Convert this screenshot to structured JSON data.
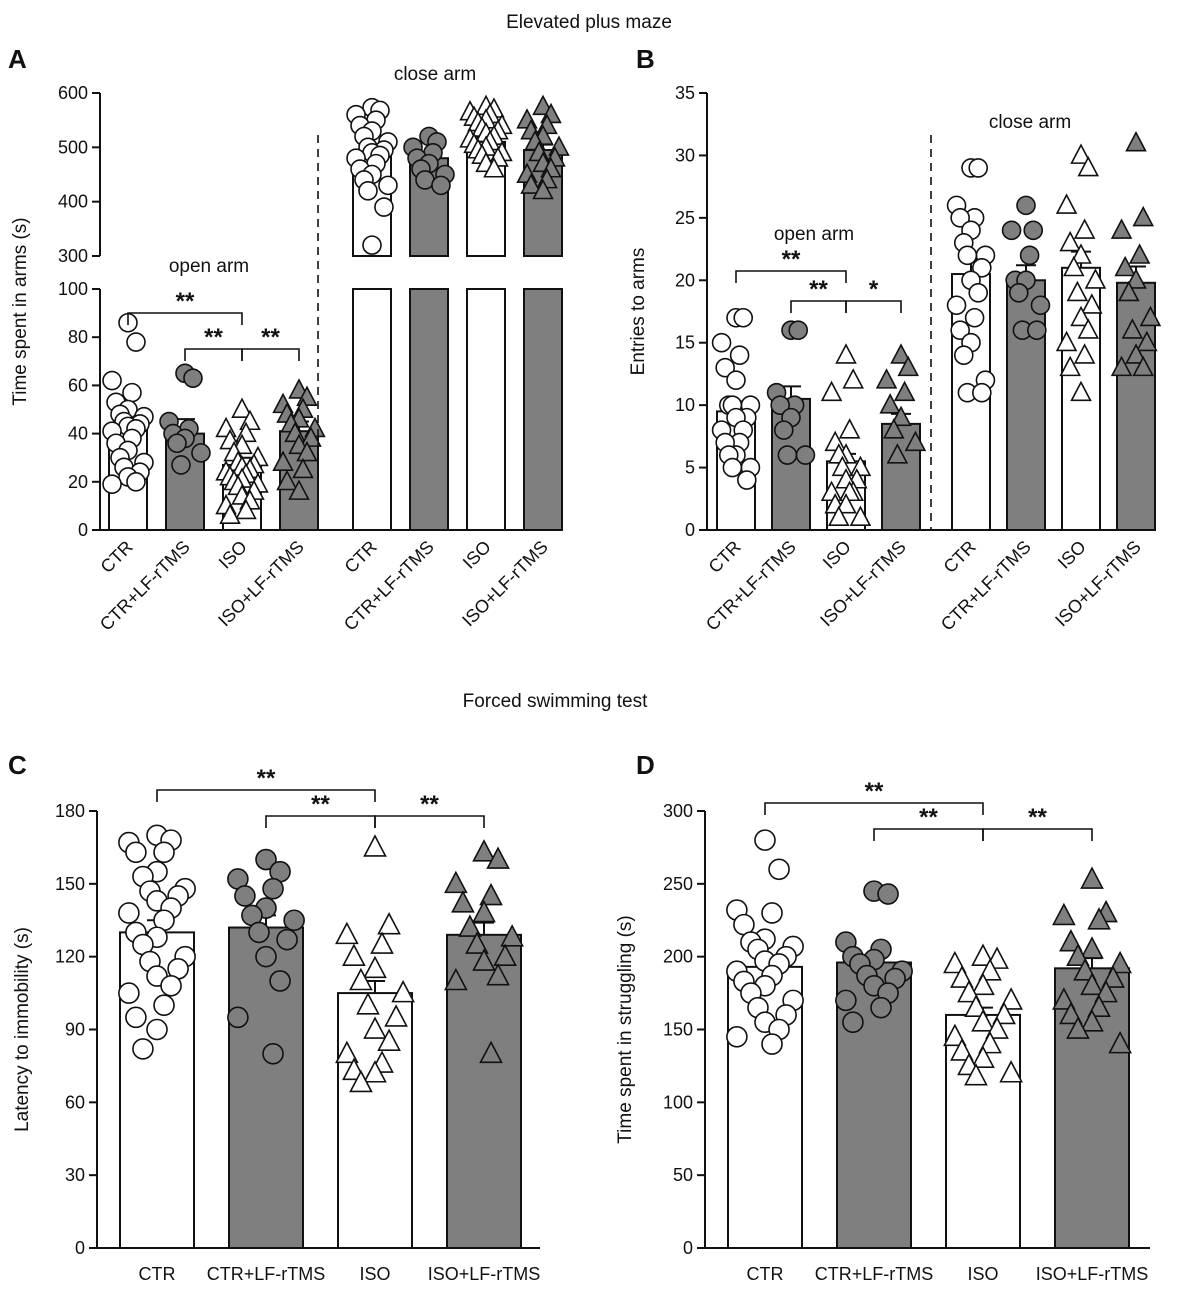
{
  "sections": {
    "epm_title": "Elevated plus maze",
    "fst_title": "Forced swimming test"
  },
  "chart_data": [
    {
      "panel": "A",
      "type": "bar",
      "title": "",
      "ylabel": "Time spent in arms (s)",
      "ylim": [
        0,
        600
      ],
      "axis_break": [
        100,
        300
      ],
      "lower_ticks": [
        "0",
        "20",
        "40",
        "60",
        "80",
        "100"
      ],
      "upper_ticks": [
        "300",
        "400",
        "500",
        "600"
      ],
      "categories": [
        "CTR",
        "CTR+LF-rTMS",
        "ISO",
        "ISO+LF-rTMS",
        "CTR",
        "CTR+LF-rTMS",
        "ISO",
        "ISO+LF-rTMS"
      ],
      "fills": [
        "white",
        "grey",
        "white",
        "grey",
        "white",
        "grey",
        "white",
        "grey"
      ],
      "markers": [
        "circle",
        "circle",
        "triangle",
        "triangle",
        "circle",
        "circle",
        "triangle",
        "triangle"
      ],
      "groups": [
        {
          "label": "open arm"
        },
        {
          "label": "close arm"
        }
      ],
      "values": [
        43,
        40,
        27,
        41,
        490,
        480,
        510,
        495
      ],
      "errors": [
        4,
        6,
        3,
        4,
        12,
        10,
        8,
        10
      ],
      "points": [
        [
          86,
          78,
          62,
          57,
          53,
          50,
          48,
          47,
          45,
          44,
          43,
          42,
          41,
          38,
          36,
          33,
          30,
          28,
          26,
          24,
          22,
          20,
          19
        ],
        [
          65,
          63,
          45,
          42,
          40,
          38,
          36,
          32,
          27
        ],
        [
          50,
          45,
          42,
          40,
          37,
          35,
          32,
          30,
          28,
          27,
          26,
          25,
          24,
          23,
          22,
          21,
          20,
          19,
          18,
          16,
          14,
          12,
          10,
          8,
          6
        ],
        [
          58,
          55,
          52,
          50,
          48,
          46,
          44,
          42,
          40,
          38,
          35,
          32,
          28,
          25,
          20,
          16
        ],
        [
          573,
          568,
          560,
          550,
          540,
          530,
          520,
          510,
          500,
          495,
          490,
          485,
          480,
          470,
          460,
          450,
          440,
          430,
          420,
          390,
          320
        ],
        [
          520,
          510,
          500,
          490,
          480,
          470,
          460,
          450,
          440,
          430
        ],
        [
          575,
          570,
          565,
          560,
          555,
          550,
          545,
          540,
          535,
          530,
          525,
          520,
          515,
          510,
          505,
          500,
          495,
          490,
          485,
          480,
          470,
          460
        ],
        [
          575,
          560,
          550,
          540,
          530,
          520,
          510,
          500,
          490,
          480,
          470,
          460,
          450,
          440,
          430,
          420
        ]
      ],
      "significance": [
        {
          "from": 0,
          "to": 2,
          "label": "**"
        },
        {
          "from": 1,
          "to": 2,
          "label": "**"
        },
        {
          "from": 2,
          "to": 3,
          "label": "**"
        }
      ]
    },
    {
      "panel": "B",
      "type": "bar",
      "ylabel": "Entries to arms",
      "ylim": [
        0,
        35
      ],
      "ticks": [
        "0",
        "5",
        "10",
        "15",
        "20",
        "25",
        "30",
        "35"
      ],
      "categories": [
        "CTR",
        "CTR+LF-rTMS",
        "ISO",
        "ISO+LF-rTMS",
        "CTR",
        "CTR+LF-rTMS",
        "ISO",
        "ISO+LF-rTMS"
      ],
      "fills": [
        "white",
        "grey",
        "white",
        "grey",
        "white",
        "grey",
        "white",
        "grey"
      ],
      "markers": [
        "circle",
        "circle",
        "triangle",
        "triangle",
        "circle",
        "circle",
        "triangle",
        "triangle"
      ],
      "groups": [
        {
          "label": "open arm"
        },
        {
          "label": "close arm"
        }
      ],
      "values": [
        9.5,
        10.5,
        5.5,
        8.5,
        20.5,
        20,
        21,
        19.8
      ],
      "errors": [
        0.8,
        1,
        0.6,
        0.8,
        1.2,
        1.2,
        1.3,
        1.3
      ],
      "points": [
        [
          17,
          17,
          15,
          14,
          13,
          12,
          10,
          10,
          10,
          9,
          9,
          8,
          8,
          7,
          7,
          6,
          6,
          5,
          5,
          4
        ],
        [
          16,
          16,
          11,
          10,
          10,
          9,
          8,
          6,
          6
        ],
        [
          14,
          12,
          11,
          8,
          7,
          6,
          6,
          5,
          5,
          4,
          4,
          3,
          3,
          3,
          2,
          2,
          1,
          1
        ],
        [
          14,
          13,
          12,
          11,
          10,
          9,
          8,
          7,
          6
        ],
        [
          29,
          29,
          26,
          25,
          25,
          24,
          23,
          22,
          22,
          21,
          20,
          19,
          18,
          17,
          16,
          15,
          14,
          12,
          11,
          11
        ],
        [
          26,
          24,
          24,
          22,
          20,
          20,
          19,
          18,
          16,
          16
        ],
        [
          30,
          29,
          26,
          24,
          23,
          22,
          21,
          20,
          19,
          18,
          17,
          16,
          15,
          14,
          13,
          11
        ],
        [
          31,
          25,
          24,
          22,
          21,
          20,
          19,
          17,
          16,
          15,
          14,
          13,
          13
        ]
      ],
      "significance": [
        {
          "from": 0,
          "to": 2,
          "label": "**"
        },
        {
          "from": 1,
          "to": 2,
          "label": "**"
        },
        {
          "from": 2,
          "to": 3,
          "label": "*"
        }
      ]
    },
    {
      "panel": "C",
      "type": "bar",
      "ylabel": "Latency to immobility (s)",
      "ylim": [
        0,
        180
      ],
      "ticks": [
        "0",
        "30",
        "60",
        "90",
        "120",
        "150",
        "180"
      ],
      "categories": [
        "CTR",
        "CTR+LF-rTMS",
        "ISO",
        "ISO+LF-rTMS"
      ],
      "fills": [
        "white",
        "grey",
        "white",
        "grey"
      ],
      "markers": [
        "circle",
        "circle",
        "triangle",
        "triangle"
      ],
      "values": [
        130,
        132,
        105,
        129
      ],
      "errors": [
        5,
        5,
        5,
        5
      ],
      "points": [
        [
          170,
          168,
          167,
          163,
          163,
          155,
          153,
          148,
          147,
          145,
          143,
          140,
          138,
          135,
          130,
          128,
          125,
          120,
          118,
          115,
          112,
          108,
          105,
          100,
          95,
          90,
          82
        ],
        [
          160,
          155,
          152,
          148,
          145,
          140,
          137,
          135,
          130,
          127,
          120,
          110,
          95,
          80
        ],
        [
          165,
          133,
          129,
          125,
          120,
          115,
          110,
          105,
          100,
          95,
          90,
          85,
          80,
          76,
          73,
          72,
          68
        ],
        [
          163,
          160,
          150,
          145,
          142,
          138,
          132,
          128,
          125,
          120,
          118,
          112,
          110,
          80
        ]
      ],
      "significance": [
        {
          "from": 0,
          "to": 2,
          "label": "**"
        },
        {
          "from": 1,
          "to": 2,
          "label": "**"
        },
        {
          "from": 2,
          "to": 3,
          "label": "**"
        }
      ]
    },
    {
      "panel": "D",
      "type": "bar",
      "ylabel": "Time spent in struggling (s)",
      "ylim": [
        0,
        300
      ],
      "ticks": [
        "0",
        "50",
        "100",
        "150",
        "200",
        "250",
        "300"
      ],
      "categories": [
        "CTR",
        "CTR+LF-rTMS",
        "ISO",
        "ISO+LF-rTMS"
      ],
      "fills": [
        "white",
        "grey",
        "white",
        "grey"
      ],
      "markers": [
        "circle",
        "circle",
        "triangle",
        "triangle"
      ],
      "values": [
        193,
        196,
        160,
        192
      ],
      "errors": [
        7,
        5,
        5,
        7
      ],
      "points": [
        [
          280,
          260,
          232,
          230,
          222,
          212,
          210,
          207,
          205,
          200,
          197,
          195,
          190,
          187,
          183,
          180,
          175,
          170,
          165,
          160,
          155,
          150,
          145,
          140
        ],
        [
          245,
          243,
          210,
          205,
          200,
          198,
          195,
          190,
          187,
          185,
          180,
          175,
          170,
          165,
          155
        ],
        [
          200,
          198,
          195,
          190,
          185,
          180,
          175,
          170,
          165,
          160,
          155,
          150,
          145,
          140,
          135,
          130,
          125,
          120,
          118
        ],
        [
          253,
          230,
          228,
          225,
          210,
          205,
          200,
          195,
          190,
          185,
          180,
          175,
          170,
          165,
          160,
          155,
          150,
          140
        ]
      ],
      "significance": [
        {
          "from": 0,
          "to": 2,
          "label": "**"
        },
        {
          "from": 1,
          "to": 2,
          "label": "**"
        },
        {
          "from": 2,
          "to": 3,
          "label": "**"
        }
      ]
    }
  ]
}
